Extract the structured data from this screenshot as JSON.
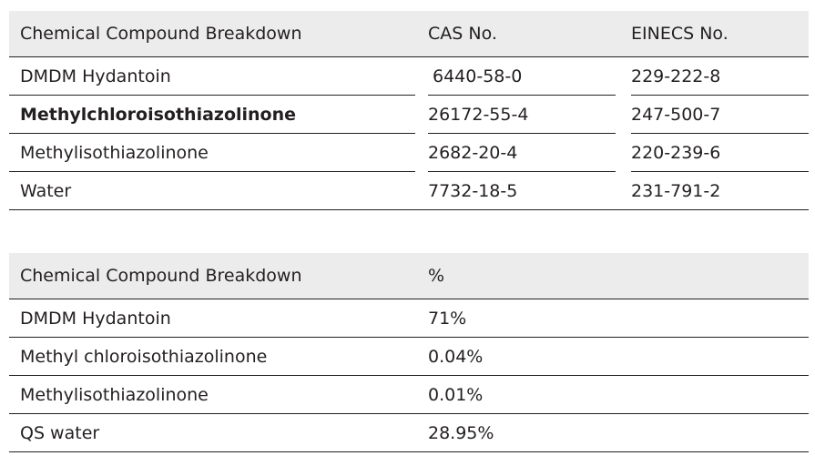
{
  "table1": {
    "headers": [
      "Chemical Compound Breakdown",
      "CAS No.",
      "EINECS No."
    ],
    "rows": [
      [
        "DMDM Hydantoin",
        "6440-58-0",
        "229-222-8"
      ],
      [
        "Methylchloroisothiazolinone",
        "26172-55-4",
        "247-500-7"
      ],
      [
        "Methylisothiazolinone",
        "2682-20-4",
        "220-239-6"
      ],
      [
        "Water",
        "7732-18-5",
        "231-791-2"
      ]
    ]
  },
  "table2": {
    "headers": [
      "Chemical Compound Breakdown",
      "%"
    ],
    "rows": [
      [
        "DMDM Hydantoin",
        "71%"
      ],
      [
        "Methyl chloroisothiazolinone",
        "0.04%"
      ],
      [
        "Methylisothiazolinone",
        "0.01%"
      ],
      [
        "QS water",
        "28.95%"
      ]
    ]
  }
}
